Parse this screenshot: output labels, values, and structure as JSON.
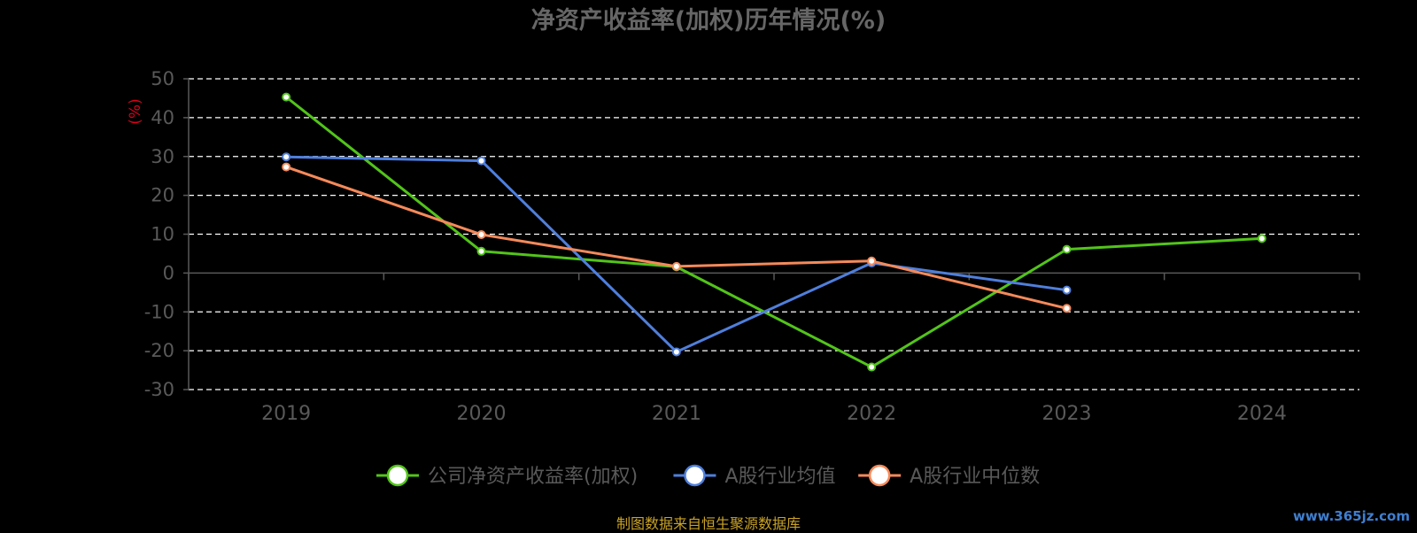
{
  "chart_data": {
    "type": "line",
    "title": "净资产收益率(加权)历年情况(%)",
    "ylabel": "(%)",
    "xlabel": "",
    "categories": [
      "2019",
      "2020",
      "2021",
      "2022",
      "2023",
      "2024"
    ],
    "ylim": [
      -30,
      50
    ],
    "yticks": [
      50,
      40,
      30,
      20,
      10,
      0,
      -10,
      -20,
      -30
    ],
    "grid": true,
    "legend_position": "bottom",
    "series": [
      {
        "name": "公司净资产收益率(加权)",
        "color": "#52c41a",
        "values": [
          45.3,
          5.6,
          1.6,
          -24.2,
          6.1,
          8.9
        ]
      },
      {
        "name": "A股行业均值",
        "color": "#4f7fdc",
        "values": [
          29.9,
          28.9,
          -20.3,
          2.6,
          -4.4,
          null
        ]
      },
      {
        "name": "A股行业中位数",
        "color": "#f58a5a",
        "values": [
          27.3,
          9.9,
          1.7,
          3.1,
          -9.1,
          null
        ]
      }
    ]
  },
  "footer": {
    "source": "制图数据来自恒生聚源数据库",
    "watermark": "www.365jz.com"
  },
  "colors": {
    "background": "#000000",
    "title": "#666666",
    "axis_text": "#595959",
    "ylabel": "#d9001b",
    "grid": "#ffffff"
  }
}
